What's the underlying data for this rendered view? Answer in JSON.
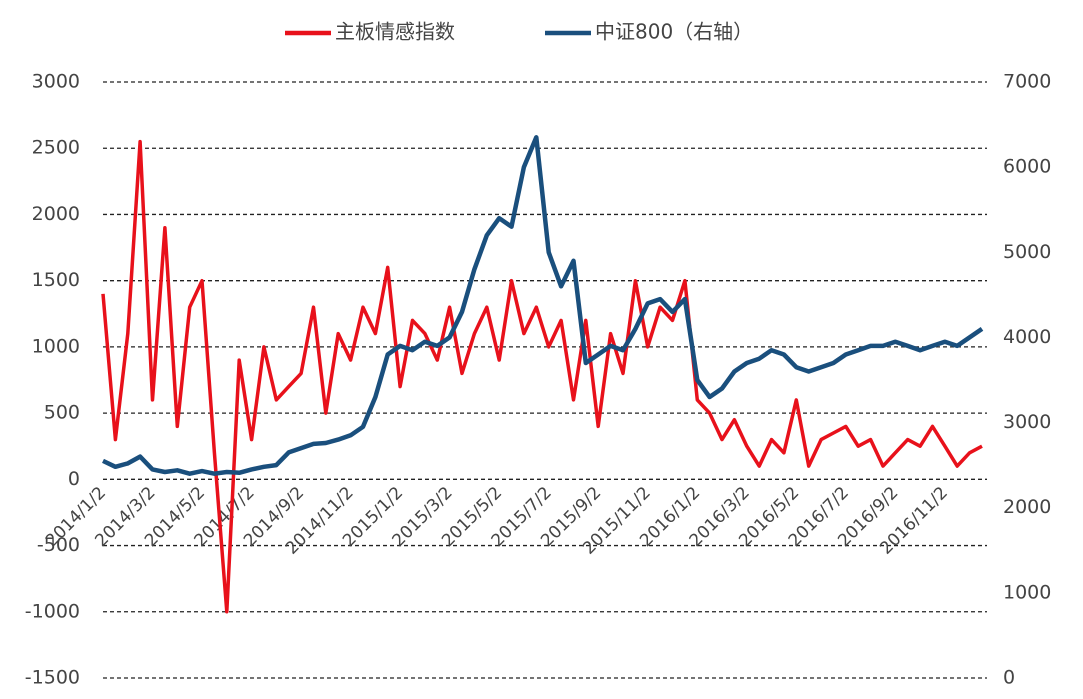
{
  "chart_data": {
    "type": "line",
    "categories": [
      "2014/1/2",
      null,
      null,
      null,
      "2014/3/2",
      null,
      null,
      null,
      "2014/5/2",
      null,
      null,
      null,
      "2014/7/2",
      null,
      null,
      null,
      "2014/9/2",
      null,
      null,
      null,
      "2014/11/2",
      null,
      null,
      null,
      "2015/1/2",
      null,
      null,
      null,
      "2015/3/2",
      null,
      null,
      null,
      "2015/5/2",
      null,
      null,
      null,
      "2015/7/2",
      null,
      null,
      null,
      "2015/9/2",
      null,
      null,
      null,
      "2015/11/2",
      null,
      null,
      null,
      "2016/1/2",
      null,
      null,
      null,
      "2016/3/2",
      null,
      null,
      null,
      "2016/5/2",
      null,
      null,
      null,
      "2016/7/2",
      null,
      null,
      null,
      "2016/9/2",
      null,
      null,
      null,
      "2016/11/2",
      null,
      null,
      null
    ],
    "series": [
      {
        "name": "主板情感指数",
        "color": "#e8111b",
        "values": [
          1400,
          300,
          1100,
          2550,
          600,
          1900,
          400,
          1300,
          1500,
          200,
          -1000,
          900,
          300,
          1000,
          600,
          700,
          800,
          1300,
          500,
          1100,
          900,
          1300,
          1100,
          1600,
          700,
          1200,
          1100,
          900,
          1300,
          800,
          1100,
          1300,
          900,
          1500,
          1100,
          1300,
          1000,
          1200,
          600,
          1200,
          400,
          1100,
          800,
          1500,
          1000,
          1300,
          1200,
          1500,
          600,
          500,
          300,
          450,
          250,
          100,
          300,
          200,
          600,
          100,
          300,
          350,
          400,
          250,
          300,
          100,
          200,
          300,
          250,
          400,
          250,
          100,
          200,
          250
        ]
      },
      {
        "name": "中证800（右轴）",
        "color": "#1a4f7d",
        "axis": "y2",
        "values": [
          2550,
          2480,
          2520,
          2600,
          2450,
          2420,
          2440,
          2400,
          2430,
          2400,
          2420,
          2410,
          2450,
          2480,
          2500,
          2650,
          2700,
          2750,
          2760,
          2800,
          2850,
          2950,
          3300,
          3800,
          3900,
          3850,
          3950,
          3900,
          4000,
          4300,
          4800,
          5200,
          5400,
          5300,
          6000,
          6350,
          5000,
          4600,
          4900,
          3700,
          3800,
          3900,
          3850,
          4100,
          4400,
          4450,
          4300,
          4450,
          3500,
          3300,
          3400,
          3600,
          3700,
          3750,
          3850,
          3800,
          3650,
          3600,
          3650,
          3700,
          3800,
          3850,
          3900,
          3900,
          3950,
          3900,
          3850,
          3900,
          3950,
          3900,
          4000,
          4100
        ]
      }
    ],
    "ylim": [
      -1500,
      3000
    ],
    "yticks": [
      -1500,
      -1000,
      -500,
      0,
      500,
      1000,
      1500,
      2000,
      2500,
      3000
    ],
    "y2lim": [
      0,
      7000
    ],
    "y2ticks": [
      0,
      1000,
      2000,
      3000,
      4000,
      5000,
      6000,
      7000
    ],
    "grid": true,
    "legend": "top"
  }
}
